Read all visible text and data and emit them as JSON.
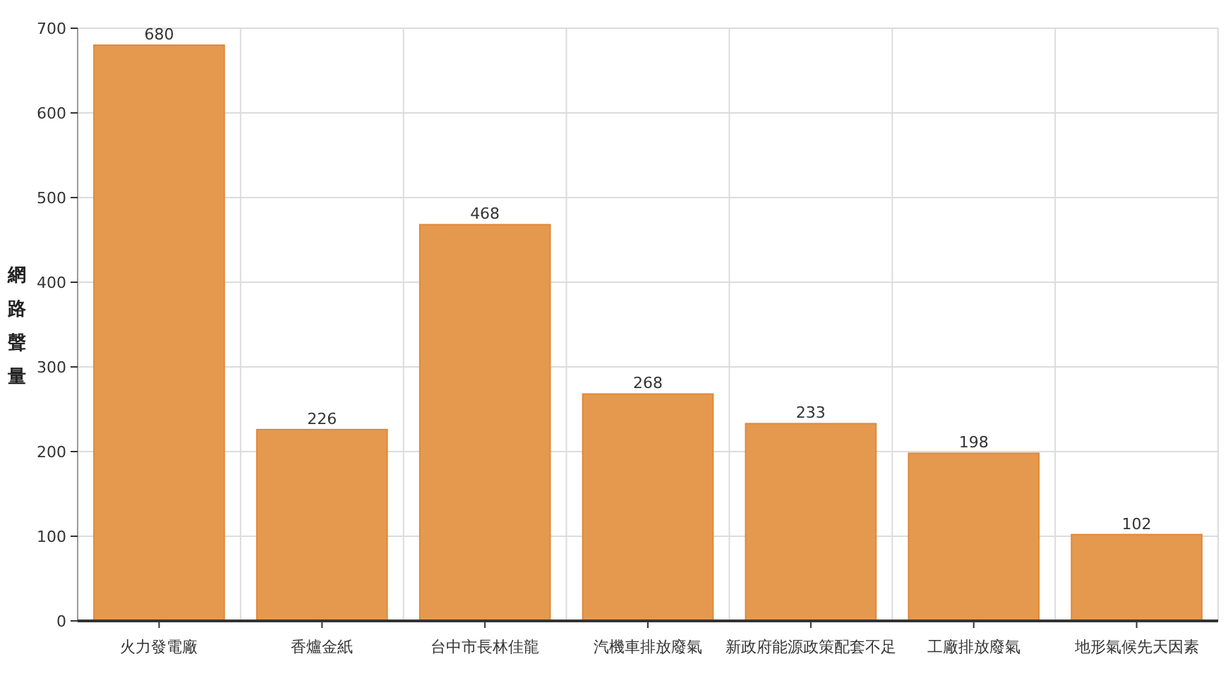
{
  "chart_data": {
    "type": "bar",
    "ylabel": "網路聲量",
    "categories": [
      "火力發電廠",
      "香爐金紙",
      "台中市長林佳龍",
      "汽機車排放廢氣",
      "新政府能源政策配套不足",
      "工廠排放廢氣",
      "地形氣候先天因素"
    ],
    "values": [
      680,
      226,
      468,
      268,
      233,
      198,
      102
    ],
    "color": "#e5994f",
    "ylim": [
      0,
      700
    ],
    "yticks": [
      0,
      100,
      200,
      300,
      400,
      500,
      600,
      700
    ],
    "grid": true,
    "data_labels": true
  }
}
